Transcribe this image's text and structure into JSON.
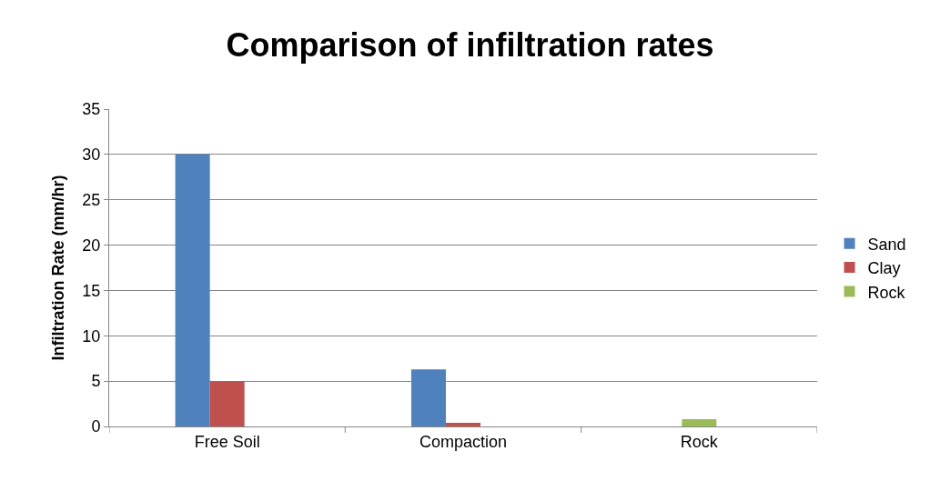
{
  "chart_data": {
    "type": "bar",
    "title": "Comparison of infiltration rates",
    "ylabel": "Infiltration Rate (mm/hr)",
    "categories": [
      "Free Soil",
      "Compaction",
      "Rock"
    ],
    "series": [
      {
        "name": "Sand",
        "color": "#4f81bd",
        "values": [
          30,
          6.3,
          0
        ]
      },
      {
        "name": "Clay",
        "color": "#c0504d",
        "colors": [
          "#c0504d",
          "#c0504d",
          "#9bbb59"
        ],
        "values": [
          5,
          0.4,
          0.8
        ]
      },
      {
        "name": "Rock",
        "color": "#9bbb59",
        "values": [
          null,
          null,
          null
        ]
      }
    ],
    "ylim": [
      0,
      35
    ],
    "yticks": [
      0,
      5,
      10,
      15,
      20,
      25,
      30,
      35
    ],
    "grid": "y",
    "legend": "right"
  }
}
